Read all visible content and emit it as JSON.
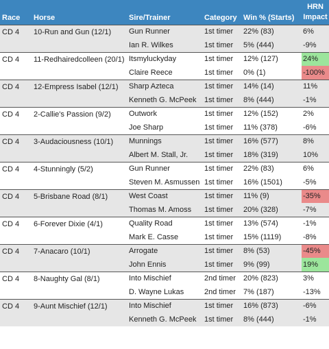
{
  "headers": {
    "race": "Race",
    "horse": "Horse",
    "sire_trainer": "Sire/Trainer",
    "category": "Category",
    "win_pct": "Win % (Starts)",
    "impact_line1": "HRN",
    "impact_line2": "Impact"
  },
  "colors": {
    "header_bg": "#3d86bf",
    "positive": "#9ce59c",
    "negative": "#ea8a8a",
    "shaded_row": "#e6e6e6"
  },
  "groups": [
    {
      "race": "CD 4",
      "horse": "10-Run and Gun (12/1)",
      "rows": [
        {
          "name": "Gun Runner",
          "category": "1st timer",
          "win": "22% (83)",
          "impact": "6%",
          "hl": ""
        },
        {
          "name": "Ian R. Wilkes",
          "category": "1st timer",
          "win": "5% (444)",
          "impact": "-9%",
          "hl": ""
        }
      ]
    },
    {
      "race": "CD 4",
      "horse": "11-Redhairedcolleen (20/1)",
      "rows": [
        {
          "name": "Itsmyluckyday",
          "category": "1st timer",
          "win": "12% (127)",
          "impact": "24%",
          "hl": "good"
        },
        {
          "name": "Claire Reece",
          "category": "1st timer",
          "win": "0% (1)",
          "impact": "-100%",
          "hl": "bad"
        }
      ]
    },
    {
      "race": "CD 4",
      "horse": "12-Empress Isabel (12/1)",
      "rows": [
        {
          "name": "Sharp Azteca",
          "category": "1st timer",
          "win": "14% (14)",
          "impact": "11%",
          "hl": ""
        },
        {
          "name": "Kenneth G. McPeek",
          "category": "1st timer",
          "win": "8% (444)",
          "impact": "-1%",
          "hl": ""
        }
      ]
    },
    {
      "race": "CD 4",
      "horse": "2-Callie's Passion (9/2)",
      "rows": [
        {
          "name": "Outwork",
          "category": "1st timer",
          "win": "12% (152)",
          "impact": "2%",
          "hl": ""
        },
        {
          "name": "Joe Sharp",
          "category": "1st timer",
          "win": "11% (378)",
          "impact": "-6%",
          "hl": ""
        }
      ]
    },
    {
      "race": "CD 4",
      "horse": "3-Audaciousness (10/1)",
      "rows": [
        {
          "name": "Munnings",
          "category": "1st timer",
          "win": "16% (577)",
          "impact": "8%",
          "hl": ""
        },
        {
          "name": "Albert M. Stall, Jr.",
          "category": "1st timer",
          "win": "18% (319)",
          "impact": "10%",
          "hl": ""
        }
      ]
    },
    {
      "race": "CD 4",
      "horse": "4-Stunningly (5/2)",
      "rows": [
        {
          "name": "Gun Runner",
          "category": "1st timer",
          "win": "22% (83)",
          "impact": "6%",
          "hl": ""
        },
        {
          "name": "Steven M. Asmussen",
          "category": "1st timer",
          "win": "16% (1501)",
          "impact": "-5%",
          "hl": ""
        }
      ]
    },
    {
      "race": "CD 4",
      "horse": "5-Brisbane Road (8/1)",
      "rows": [
        {
          "name": "West Coast",
          "category": "1st timer",
          "win": "11% (9)",
          "impact": "-35%",
          "hl": "bad"
        },
        {
          "name": "Thomas M. Amoss",
          "category": "1st timer",
          "win": "20% (328)",
          "impact": "-7%",
          "hl": ""
        }
      ]
    },
    {
      "race": "CD 4",
      "horse": "6-Forever Dixie (4/1)",
      "rows": [
        {
          "name": "Quality Road",
          "category": "1st timer",
          "win": "13% (574)",
          "impact": "-1%",
          "hl": ""
        },
        {
          "name": "Mark E. Casse",
          "category": "1st timer",
          "win": "15% (1119)",
          "impact": "-8%",
          "hl": ""
        }
      ]
    },
    {
      "race": "CD 4",
      "horse": "7-Anacaro (10/1)",
      "rows": [
        {
          "name": "Arrogate",
          "category": "1st timer",
          "win": "8% (53)",
          "impact": "-45%",
          "hl": "bad"
        },
        {
          "name": "John Ennis",
          "category": "1st timer",
          "win": "9% (99)",
          "impact": "19%",
          "hl": "good"
        }
      ]
    },
    {
      "race": "CD 4",
      "horse": "8-Naughty Gal (8/1)",
      "rows": [
        {
          "name": "Into Mischief",
          "category": "2nd timer",
          "win": "20% (823)",
          "impact": "3%",
          "hl": ""
        },
        {
          "name": "D. Wayne Lukas",
          "category": "2nd timer",
          "win": "7% (187)",
          "impact": "-13%",
          "hl": ""
        }
      ]
    },
    {
      "race": "CD 4",
      "horse": "9-Aunt Mischief (12/1)",
      "rows": [
        {
          "name": "Into Mischief",
          "category": "1st timer",
          "win": "16% (873)",
          "impact": "-6%",
          "hl": ""
        },
        {
          "name": "Kenneth G. McPeek",
          "category": "1st timer",
          "win": "8% (444)",
          "impact": "-1%",
          "hl": ""
        }
      ]
    }
  ]
}
